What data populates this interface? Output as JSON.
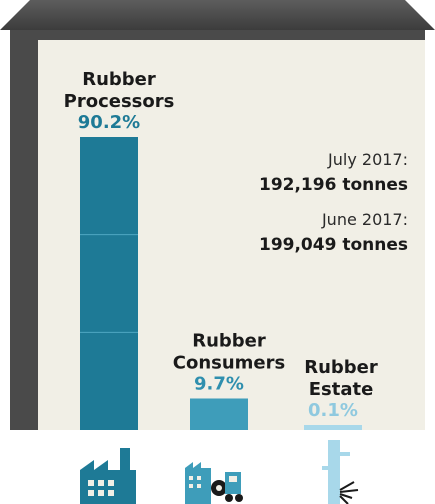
{
  "chart_data": {
    "type": "bar",
    "categories": [
      "Rubber Processors",
      "Rubber Consumers",
      "Rubber Estate"
    ],
    "category_lines": [
      [
        "Rubber",
        "Processors"
      ],
      [
        "Rubber",
        "Consumers"
      ],
      [
        "Rubber",
        "Estate"
      ]
    ],
    "values": [
      90.2,
      9.7,
      0.1
    ],
    "value_labels": [
      "90.2%",
      "9.7%",
      "0.1%"
    ],
    "value_unit": "%",
    "bar_colors": [
      "#1e7a96",
      "#3e9dba",
      "#a8d8ea"
    ],
    "label_colors": [
      "#1e7a96",
      "#2f8fae",
      "#8fc9df"
    ],
    "annotations": [
      {
        "title": "July 2017:",
        "value": "192,196 tonnes"
      },
      {
        "title": "June 2017:",
        "value": "199,049 tonnes"
      }
    ],
    "icons": [
      "factory-icon",
      "factory-truck-icon",
      "rubber-tree-icon"
    ],
    "xlabel": "",
    "ylabel": "",
    "grid": false,
    "legend": "none"
  },
  "colors": {
    "frame": "#4a4a4a",
    "panel": "#f1efe6"
  }
}
